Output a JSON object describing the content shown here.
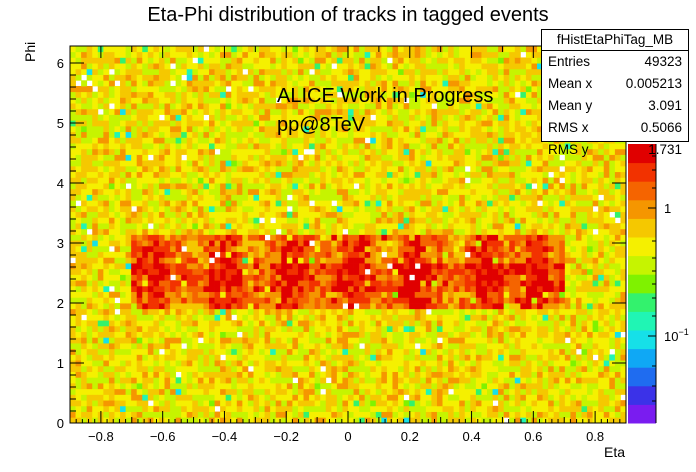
{
  "chart_data": {
    "type": "heatmap",
    "title": "Eta-Phi distribution of tracks in tagged events",
    "xlabel": "Eta",
    "ylabel": "Phi",
    "xlim": [
      -0.9,
      0.9
    ],
    "ylim": [
      0,
      6.2832
    ],
    "x_ticks": [
      "−0.8",
      "−0.6",
      "−0.4",
      "−0.2",
      "0",
      "0.2",
      "0.4",
      "0.6",
      "0.8"
    ],
    "y_ticks": [
      "0",
      "1",
      "2",
      "3",
      "4",
      "5",
      "6"
    ],
    "colorbar": {
      "scale": "log",
      "ticks": [
        "1",
        "10^{-1}"
      ]
    },
    "structure": {
      "uniform_level": "yellow-green",
      "hot_band_phi": [
        1.9,
        3.1
      ],
      "hot_band_eta": [
        -0.7,
        0.7
      ],
      "hot_spots_eta": [
        -0.63,
        -0.4,
        -0.18,
        0.02,
        0.22,
        0.45,
        0.6
      ]
    },
    "annotations": [
      "ALICE Work in Progress",
      "pp@8TeV"
    ]
  },
  "stats_box": {
    "name": "fHistEtaPhiTag_MB",
    "rows": [
      {
        "label": "Entries",
        "value": "49323"
      },
      {
        "label": "Mean x",
        "value": "0.005213"
      },
      {
        "label": "Mean y",
        "value": "3.091"
      },
      {
        "label": "RMS x",
        "value": "0.5066"
      },
      {
        "label": "RMS y",
        "value": "1.731"
      }
    ]
  }
}
